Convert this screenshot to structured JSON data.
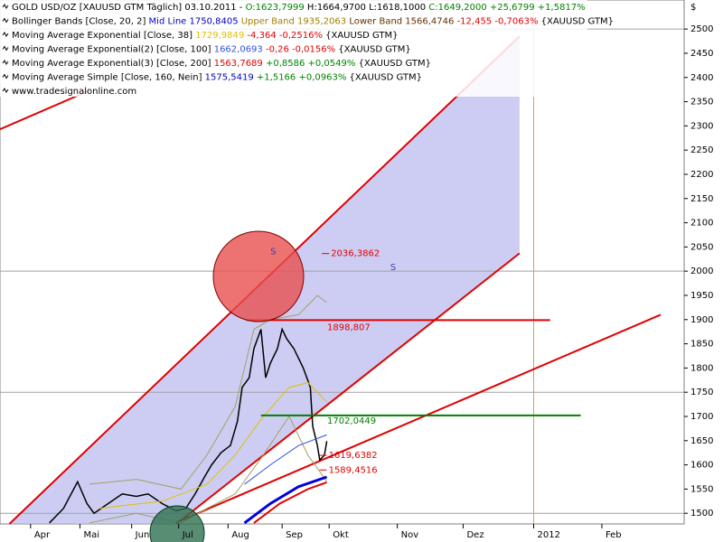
{
  "chart_data": {
    "type": "line",
    "header_rows": [
      [
        {
          "text": "GOLD USD/OZ [XAUUSD GTM  Täglich] 03.10.2011 - ",
          "color": "#000000"
        },
        {
          "text": "O:1623,7999",
          "color": "#008000"
        },
        {
          "text": " H:1664,9700 L:1618,1000 ",
          "color": "#000000"
        },
        {
          "text": "C:1649,2000 +25,6799 +1,5817%",
          "color": "#008000"
        }
      ],
      [
        {
          "text": "Bollinger Bands [Close, 20, 2] ",
          "color": "#000000"
        },
        {
          "text": "Mid Line 1750,8405",
          "color": "#0000c0"
        },
        {
          "text": " Upper Band 1935,2063",
          "color": "#a08000"
        },
        {
          "text": " Lower Band 1566,4746",
          "color": "#603000"
        },
        {
          "text": " -12,455 -0,7063%",
          "color": "#e00000"
        },
        {
          "text": " {XAUUSD GTM}",
          "color": "#000000"
        }
      ],
      [
        {
          "text": "Moving Average Exponential [Close, 38] ",
          "color": "#000000"
        },
        {
          "text": "1729,9849",
          "color": "#e0c000"
        },
        {
          "text": " -4,364 -0,2516%",
          "color": "#e00000"
        },
        {
          "text": " {XAUUSD GTM}",
          "color": "#000000"
        }
      ],
      [
        {
          "text": "Moving Average Exponential(2) [Close, 100] ",
          "color": "#000000"
        },
        {
          "text": "1662,0693",
          "color": "#3050e0"
        },
        {
          "text": " -0,26 -0,0156%",
          "color": "#e00000"
        },
        {
          "text": " {XAUUSD GTM}",
          "color": "#000000"
        }
      ],
      [
        {
          "text": "Moving Average Exponential(3) [Close, 200] ",
          "color": "#000000"
        },
        {
          "text": "1563,7689",
          "color": "#e00000"
        },
        {
          "text": " +0,8586 +0,0549%",
          "color": "#008000"
        },
        {
          "text": " {XAUUSD GTM}",
          "color": "#000000"
        }
      ],
      [
        {
          "text": "Moving Average Simple [Close, 160, Nein] ",
          "color": "#000000"
        },
        {
          "text": "1575,5419",
          "color": "#0000c0"
        },
        {
          "text": " +1,5166 +0,0963%",
          "color": "#008000"
        },
        {
          "text": " {XAUUSD GTM}",
          "color": "#000000"
        }
      ],
      [
        {
          "text": "www.tradesignalonline.com",
          "color": "#000000"
        }
      ]
    ],
    "y_unit": "$",
    "xlim": [
      0,
      291
    ],
    "xticks": [
      {
        "value": 13,
        "label": "Apr"
      },
      {
        "value": 34,
        "label": "Mai"
      },
      {
        "value": 56,
        "label": "Jun"
      },
      {
        "value": 76,
        "label": "Jul"
      },
      {
        "value": 97,
        "label": "Aug"
      },
      {
        "value": 120,
        "label": "Sep"
      },
      {
        "value": 140,
        "label": "Okt"
      },
      {
        "value": 169,
        "label": "Nov"
      },
      {
        "value": 197,
        "label": "Dez"
      },
      {
        "value": 227,
        "label": "2012"
      },
      {
        "value": 256,
        "label": "Feb"
      }
    ],
    "ylim": [
      1478,
      2560
    ],
    "yticks": [
      1500,
      1550,
      1600,
      1650,
      1700,
      1750,
      1800,
      1850,
      1900,
      1950,
      2000,
      2050,
      2100,
      2150,
      2200,
      2250,
      2300,
      2350,
      2400,
      2450,
      2500
    ],
    "grid_lines": [
      1500,
      1750,
      2000,
      2500
    ],
    "channel": {
      "color": "#b8b8f0",
      "x": [
        4,
        221,
        221,
        75
      ],
      "y": [
        1478,
        2485,
        2037,
        1478
      ]
    },
    "series": [
      {
        "name": "Close",
        "color": "#000000",
        "width": 1.5,
        "x": [
          21,
          27,
          33,
          37,
          40,
          46,
          52,
          58,
          63,
          69,
          75,
          79,
          83,
          87,
          90,
          94,
          98,
          101,
          103,
          106,
          108,
          111,
          113,
          115,
          118,
          120,
          122,
          125,
          127,
          129,
          132,
          133,
          135,
          136,
          138,
          139
        ],
        "values": [
          1480,
          1510,
          1565,
          1520,
          1500,
          1520,
          1540,
          1535,
          1540,
          1520,
          1505,
          1510,
          1540,
          1575,
          1600,
          1625,
          1640,
          1690,
          1760,
          1780,
          1840,
          1880,
          1780,
          1810,
          1840,
          1880,
          1860,
          1840,
          1820,
          1800,
          1760,
          1680,
          1640,
          1610,
          1620,
          1649
        ]
      },
      {
        "name": "Upper Band",
        "color": "#a0a060",
        "width": 1,
        "x": [
          38,
          58,
          77,
          88,
          100,
          108,
          115,
          127,
          135,
          139
        ],
        "values": [
          1560,
          1570,
          1550,
          1620,
          1720,
          1880,
          1900,
          1910,
          1950,
          1935
        ]
      },
      {
        "name": "Lower Band",
        "color": "#a0a060",
        "width": 1,
        "x": [
          38,
          58,
          77,
          88,
          100,
          112,
          123,
          131,
          139
        ],
        "values": [
          1480,
          1500,
          1480,
          1510,
          1540,
          1620,
          1700,
          1620,
          1566
        ]
      },
      {
        "name": "EMA 38",
        "color": "#e0c000",
        "width": 1,
        "x": [
          42,
          69,
          88,
          100,
          112,
          123,
          131,
          139
        ],
        "values": [
          1510,
          1525,
          1560,
          1620,
          1700,
          1760,
          1770,
          1730
        ]
      },
      {
        "name": "EMA 100",
        "color": "#3050e0",
        "width": 1,
        "x": [
          104,
          115,
          127,
          139
        ],
        "values": [
          1560,
          1600,
          1640,
          1662
        ]
      },
      {
        "name": "SMA 160",
        "color": "#0000e0",
        "width": 3,
        "x": [
          104,
          115,
          127,
          139
        ],
        "values": [
          1480,
          1520,
          1555,
          1575
        ]
      },
      {
        "name": "EMA 200",
        "color": "#e00000",
        "width": 2,
        "x": [
          108,
          119,
          131,
          139
        ],
        "values": [
          1480,
          1520,
          1550,
          1564
        ]
      }
    ],
    "trend_lines": [
      {
        "color": "#e00000",
        "x": [
          4,
          221
        ],
        "y": [
          1478,
          2485
        ]
      },
      {
        "color": "#e00000",
        "x": [
          75,
          221
        ],
        "y": [
          1478,
          2037
        ]
      },
      {
        "color": "#e00000",
        "x": [
          0,
          38
        ],
        "y": [
          2293,
          2373
        ]
      },
      {
        "color": "#e00000",
        "x": [
          75,
          281
        ],
        "y": [
          1481,
          1910
        ]
      }
    ],
    "hlines": [
      {
        "value": 1898.807,
        "label": "1898,807",
        "color": "#e00000",
        "x": [
          105,
          234
        ]
      },
      {
        "value": 1702.0449,
        "label": "1702,0449",
        "color": "#008000",
        "x": [
          111,
          247
        ]
      }
    ],
    "price_labels": [
      {
        "value": 2036.3862,
        "label": "2036,3862",
        "x": 140
      },
      {
        "value": 1619.6382,
        "label": "1619,6382",
        "x": 139
      },
      {
        "value": 1589.4516,
        "label": "1589,4516",
        "x": 139
      }
    ],
    "markers": [
      {
        "text": "S",
        "x": 115,
        "y": 2040
      },
      {
        "text": "S",
        "x": 166,
        "y": 2008
      }
    ]
  }
}
